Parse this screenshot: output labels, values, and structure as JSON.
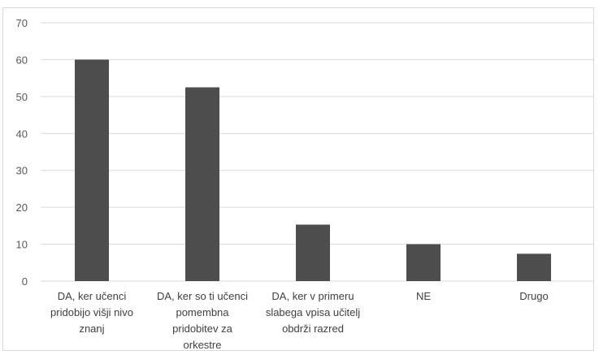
{
  "chart_data": {
    "type": "bar",
    "categories": [
      "DA, ker učenci\npridobijo višji nivo\nznanj",
      "DA, ker so ti učenci\npomembna\npridobitev za\norkestre",
      "DA, ker v primeru\nslabega vpisa učitelj\nobdrži razred",
      "NE",
      "Drugo"
    ],
    "values": [
      60,
      52.5,
      15.3,
      10,
      7.4
    ],
    "yticks": [
      "0",
      "10",
      "20",
      "30",
      "40",
      "50",
      "60",
      "70"
    ],
    "ylim": [
      0,
      70
    ],
    "title": "",
    "xlabel": "",
    "ylabel": "",
    "grid": true,
    "legend": "none",
    "bar_color": "#4d4d4d",
    "grid_color": "#d9d9d9"
  }
}
